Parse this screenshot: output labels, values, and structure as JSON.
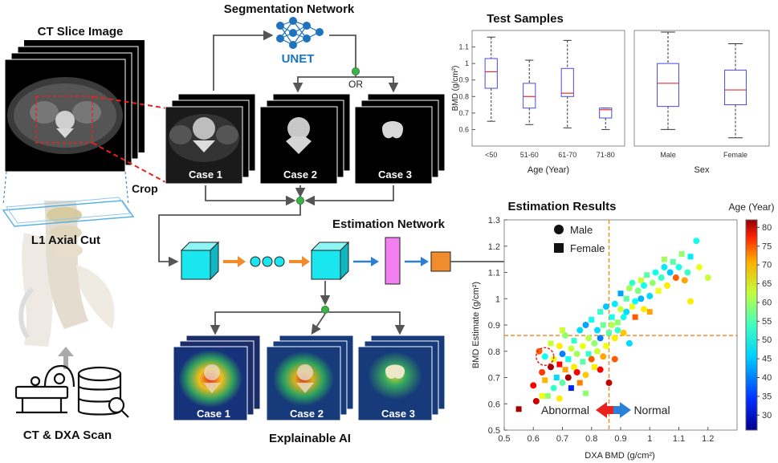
{
  "titles": {
    "ct_slice": "CT Slice Image",
    "segmentation": "Segmentation Network",
    "estimation_network": "Estimation Network",
    "explainable": "Explainable AI",
    "l1_cut": "L1 Axial Cut",
    "ct_dxa": "CT & DXA Scan",
    "crop": "Crop",
    "unet": "UNET",
    "or": "OR"
  },
  "cases": [
    "Case 1",
    "Case 2",
    "Case 3"
  ],
  "colors": {
    "unet_blue": "#1e73be",
    "cube_cyan": "#19e6ee",
    "arrow_orange": "#f08c2c",
    "arrow_blue": "#2c7fd6",
    "fc_magenta": "#f27ef0",
    "out_orange": "#f08c2c",
    "crop_red": "#e8221c",
    "green_node": "#3ab54a"
  },
  "chart_data": [
    {
      "type": "box",
      "title": "Test Samples",
      "ylabel": "BMD (g/cm²)",
      "xlabel": "Age (Year)",
      "ylim": [
        0.5,
        1.2
      ],
      "yticks": [
        "0.6",
        "0.7",
        "0.8",
        "0.9",
        "1",
        "1.1"
      ],
      "categories": [
        "<50",
        "51-60",
        "61-70",
        "71-80"
      ],
      "boxes": [
        {
          "min": 0.65,
          "q1": 0.85,
          "median": 0.95,
          "q3": 1.03,
          "max": 1.16
        },
        {
          "min": 0.63,
          "q1": 0.73,
          "median": 0.8,
          "q3": 0.88,
          "max": 1.02
        },
        {
          "min": 0.61,
          "q1": 0.8,
          "median": 0.82,
          "q3": 0.97,
          "max": 1.14
        },
        {
          "min": 0.6,
          "q1": 0.67,
          "median": 0.72,
          "q3": 0.73,
          "max": 0.73
        }
      ]
    },
    {
      "type": "box",
      "xlabel": "Sex",
      "ylim": [
        0.5,
        1.2
      ],
      "categories": [
        "Male",
        "Female"
      ],
      "boxes": [
        {
          "min": 0.6,
          "q1": 0.74,
          "median": 0.88,
          "q3": 1.0,
          "max": 1.19
        },
        {
          "min": 0.55,
          "q1": 0.75,
          "median": 0.84,
          "q3": 0.96,
          "max": 1.12
        }
      ]
    },
    {
      "type": "scatter",
      "title": "Estimation Results",
      "xlabel": "DXA BMD (g/cm²)",
      "ylabel": "BMD Estimate (g/cm²)",
      "xlim": [
        0.5,
        1.3
      ],
      "ylim": [
        0.5,
        1.3
      ],
      "xticks": [
        "0.5",
        "0.6",
        "0.7",
        "0.8",
        "0.9",
        "1",
        "1.1",
        "1.2"
      ],
      "yticks": [
        "0.5",
        "0.6",
        "0.7",
        "0.8",
        "0.9",
        "1",
        "1.1",
        "1.2",
        "1.3"
      ],
      "threshold_x": 0.86,
      "threshold_y": 0.86,
      "legend": {
        "male": "Male",
        "female": "Female"
      },
      "colorbar": {
        "title": "Age (Year)",
        "min": 26,
        "max": 82,
        "ticks": [
          "30",
          "35",
          "40",
          "45",
          "50",
          "55",
          "60",
          "65",
          "70",
          "75",
          "80"
        ]
      },
      "annotations": {
        "abnormal": "Abnormal",
        "normal": "Normal"
      },
      "points": [
        [
          0.55,
          0.58,
          80,
          "f"
        ],
        [
          0.6,
          0.67,
          75,
          "m"
        ],
        [
          0.61,
          0.61,
          78,
          "m"
        ],
        [
          0.63,
          0.63,
          60,
          "f"
        ],
        [
          0.64,
          0.78,
          48,
          "m"
        ],
        [
          0.62,
          0.8,
          70,
          "m"
        ],
        [
          0.63,
          0.72,
          72,
          "m"
        ],
        [
          0.64,
          0.69,
          65,
          "f"
        ],
        [
          0.65,
          0.63,
          55,
          "f"
        ],
        [
          0.66,
          0.74,
          80,
          "m"
        ],
        [
          0.66,
          0.83,
          58,
          "f"
        ],
        [
          0.67,
          0.66,
          50,
          "m"
        ],
        [
          0.67,
          0.77,
          60,
          "m"
        ],
        [
          0.68,
          0.7,
          45,
          "f"
        ],
        [
          0.69,
          0.82,
          62,
          "m"
        ],
        [
          0.69,
          0.75,
          75,
          "f"
        ],
        [
          0.7,
          0.68,
          52,
          "m"
        ],
        [
          0.7,
          0.79,
          40,
          "m"
        ],
        [
          0.71,
          0.73,
          66,
          "f"
        ],
        [
          0.71,
          0.86,
          55,
          "m"
        ],
        [
          0.72,
          0.7,
          80,
          "m"
        ],
        [
          0.72,
          0.77,
          48,
          "f"
        ],
        [
          0.73,
          0.81,
          58,
          "m"
        ],
        [
          0.73,
          0.66,
          35,
          "f"
        ],
        [
          0.74,
          0.74,
          62,
          "m"
        ],
        [
          0.74,
          0.84,
          50,
          "f"
        ],
        [
          0.75,
          0.72,
          75,
          "m"
        ],
        [
          0.75,
          0.79,
          56,
          "m"
        ],
        [
          0.76,
          0.88,
          45,
          "m"
        ],
        [
          0.76,
          0.68,
          68,
          "f"
        ],
        [
          0.77,
          0.76,
          52,
          "f"
        ],
        [
          0.77,
          0.82,
          60,
          "m"
        ],
        [
          0.78,
          0.9,
          42,
          "m"
        ],
        [
          0.78,
          0.71,
          64,
          "m"
        ],
        [
          0.79,
          0.79,
          50,
          "f"
        ],
        [
          0.79,
          0.85,
          57,
          "m"
        ],
        [
          0.8,
          0.77,
          70,
          "m"
        ],
        [
          0.8,
          0.92,
          48,
          "f"
        ],
        [
          0.81,
          0.83,
          55,
          "m"
        ],
        [
          0.81,
          0.74,
          62,
          "f"
        ],
        [
          0.82,
          0.88,
          45,
          "m"
        ],
        [
          0.82,
          0.8,
          58,
          "m"
        ],
        [
          0.83,
          0.95,
          50,
          "f"
        ],
        [
          0.83,
          0.85,
          40,
          "m"
        ],
        [
          0.84,
          0.78,
          66,
          "m"
        ],
        [
          0.84,
          0.9,
          53,
          "f"
        ],
        [
          0.85,
          0.82,
          60,
          "m"
        ],
        [
          0.85,
          0.97,
          44,
          "m"
        ],
        [
          0.86,
          0.87,
          52,
          "f"
        ],
        [
          0.86,
          0.68,
          78,
          "m"
        ],
        [
          0.87,
          0.9,
          57,
          "m"
        ],
        [
          0.87,
          0.93,
          48,
          "f"
        ],
        [
          0.88,
          0.85,
          62,
          "m"
        ],
        [
          0.88,
          0.98,
          46,
          "m"
        ],
        [
          0.89,
          0.91,
          55,
          "f"
        ],
        [
          0.89,
          0.88,
          50,
          "m"
        ],
        [
          0.9,
          0.96,
          58,
          "m"
        ],
        [
          0.9,
          1.02,
          42,
          "f"
        ],
        [
          0.91,
          0.93,
          48,
          "m"
        ],
        [
          0.91,
          0.87,
          64,
          "m"
        ],
        [
          0.92,
          1.0,
          52,
          "f"
        ],
        [
          0.92,
          0.95,
          45,
          "m"
        ],
        [
          0.93,
          1.04,
          56,
          "m"
        ],
        [
          0.94,
          0.97,
          60,
          "f"
        ],
        [
          0.94,
          1.06,
          50,
          "m"
        ],
        [
          0.95,
          0.99,
          47,
          "m"
        ],
        [
          0.95,
          0.93,
          70,
          "f"
        ],
        [
          0.96,
          1.03,
          54,
          "m"
        ],
        [
          0.97,
          1.0,
          43,
          "m"
        ],
        [
          0.97,
          1.07,
          58,
          "f"
        ],
        [
          0.98,
          0.96,
          62,
          "m"
        ],
        [
          0.98,
          1.05,
          48,
          "m"
        ],
        [
          0.99,
          1.09,
          52,
          "f"
        ],
        [
          1.0,
          1.01,
          45,
          "m"
        ],
        [
          1.0,
          0.95,
          66,
          "f"
        ],
        [
          1.01,
          1.06,
          55,
          "m"
        ],
        [
          1.02,
          1.1,
          48,
          "m"
        ],
        [
          1.03,
          1.03,
          60,
          "f"
        ],
        [
          1.04,
          1.08,
          50,
          "m"
        ],
        [
          1.05,
          1.12,
          46,
          "m"
        ],
        [
          1.05,
          1.15,
          56,
          "f"
        ],
        [
          1.06,
          1.05,
          62,
          "m"
        ],
        [
          1.07,
          1.1,
          44,
          "m"
        ],
        [
          1.08,
          1.14,
          52,
          "f"
        ],
        [
          1.09,
          1.08,
          70,
          "m"
        ],
        [
          1.1,
          1.12,
          48,
          "m"
        ],
        [
          1.11,
          1.17,
          55,
          "f"
        ],
        [
          1.12,
          1.07,
          66,
          "m"
        ],
        [
          1.13,
          1.1,
          50,
          "m"
        ],
        [
          1.14,
          1.16,
          46,
          "f"
        ],
        [
          1.16,
          1.22,
          48,
          "m"
        ],
        [
          1.17,
          1.12,
          60,
          "m"
        ],
        [
          1.2,
          1.08,
          58,
          "m"
        ],
        [
          1.14,
          0.99,
          62,
          "m"
        ],
        [
          0.88,
          0.77,
          70,
          "m"
        ],
        [
          0.93,
          0.83,
          45,
          "m"
        ],
        [
          0.7,
          0.88,
          58,
          "f"
        ],
        [
          0.83,
          0.73,
          75,
          "m"
        ],
        [
          0.78,
          0.64,
          55,
          "f"
        ],
        [
          0.69,
          0.62,
          62,
          "m"
        ]
      ]
    }
  ]
}
